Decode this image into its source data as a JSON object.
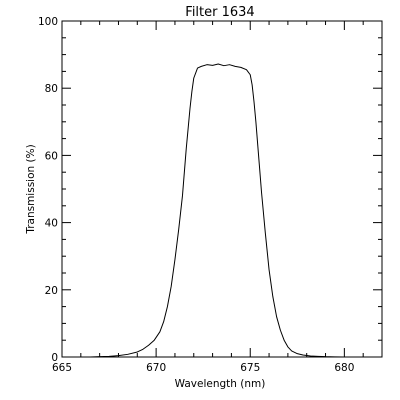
{
  "chart_data": {
    "type": "line",
    "title": "Filter 1634",
    "xlabel": "Wavelength (nm)",
    "ylabel": "Transmission (%)",
    "xlim": [
      665,
      682
    ],
    "ylim": [
      0,
      100
    ],
    "x_ticks": [
      665,
      670,
      675,
      680
    ],
    "y_ticks": [
      0,
      20,
      40,
      60,
      80,
      100
    ],
    "x_minor_step": 1,
    "y_minor_step": 5,
    "grid": false,
    "legend": "none",
    "line_color": "#000000",
    "series": [
      {
        "x": [
          666.0,
          666.5,
          667.0,
          667.5,
          668.0,
          668.5,
          669.0,
          669.3,
          669.6,
          669.9,
          670.2,
          670.4,
          670.6,
          670.8,
          671.0,
          671.2,
          671.4,
          671.5,
          671.6,
          671.7,
          671.8,
          671.9,
          672.0,
          672.2,
          672.4,
          672.7,
          673.0,
          673.3,
          673.6,
          673.9,
          674.2,
          674.5,
          674.8,
          675.0,
          675.1,
          675.2,
          675.3,
          675.4,
          675.5,
          675.6,
          675.8,
          676.0,
          676.2,
          676.4,
          676.6,
          676.8,
          677.0,
          677.2,
          677.5,
          677.8,
          678.2,
          678.6,
          679.0,
          679.5,
          680.0,
          680.5,
          681.0,
          681.5,
          682.0
        ],
        "y": [
          0.0,
          0.0,
          0.1,
          0.2,
          0.4,
          0.8,
          1.5,
          2.3,
          3.5,
          5.0,
          7.5,
          10.5,
          15.0,
          21.0,
          29.0,
          38.0,
          48.0,
          55.0,
          62.0,
          68.0,
          74.0,
          79.0,
          83.0,
          86.0,
          86.5,
          87.0,
          86.8,
          87.2,
          86.7,
          87.0,
          86.5,
          86.2,
          85.5,
          84.0,
          81.0,
          76.0,
          70.0,
          63.0,
          56.0,
          49.0,
          37.0,
          26.0,
          18.0,
          12.0,
          8.0,
          5.0,
          3.0,
          1.8,
          1.0,
          0.6,
          0.3,
          0.2,
          0.1,
          0.05,
          0.0,
          0.0,
          0.0,
          0.0,
          0.0
        ]
      }
    ]
  }
}
